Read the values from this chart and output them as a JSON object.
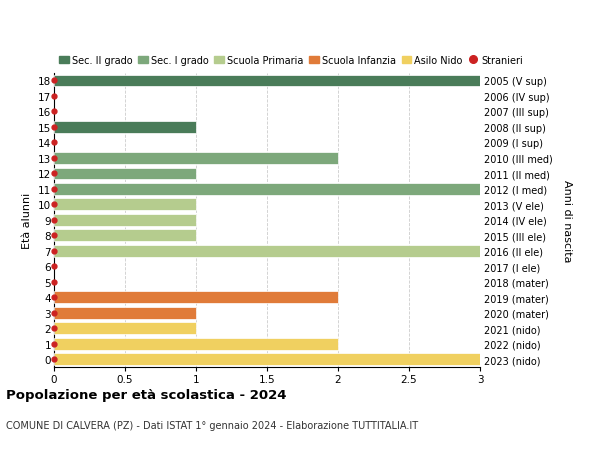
{
  "ages": [
    18,
    17,
    16,
    15,
    14,
    13,
    12,
    11,
    10,
    9,
    8,
    7,
    6,
    5,
    4,
    3,
    2,
    1,
    0
  ],
  "right_labels": [
    "2005 (V sup)",
    "2006 (IV sup)",
    "2007 (III sup)",
    "2008 (II sup)",
    "2009 (I sup)",
    "2010 (III med)",
    "2011 (II med)",
    "2012 (I med)",
    "2013 (V ele)",
    "2014 (IV ele)",
    "2015 (III ele)",
    "2016 (II ele)",
    "2017 (I ele)",
    "2018 (mater)",
    "2019 (mater)",
    "2020 (mater)",
    "2021 (nido)",
    "2022 (nido)",
    "2023 (nido)"
  ],
  "bar_values": [
    3.0,
    0,
    0,
    1.0,
    0,
    2.0,
    1.0,
    3.0,
    1.0,
    1.0,
    1.0,
    3.0,
    0,
    0,
    2.0,
    1.0,
    1.0,
    2.0,
    3.0
  ],
  "bar_colors": [
    "#4a7c59",
    "#4a7c59",
    "#4a7c59",
    "#4a7c59",
    "#4a7c59",
    "#7da87b",
    "#7da87b",
    "#7da87b",
    "#b5cc8e",
    "#b5cc8e",
    "#b5cc8e",
    "#b5cc8e",
    "#b5cc8e",
    "#e07b39",
    "#e07b39",
    "#e07b39",
    "#f0d060",
    "#f0d060",
    "#f0d060"
  ],
  "stranieri_dots": [
    18,
    17,
    16,
    15,
    14,
    13,
    12,
    11,
    10,
    9,
    8,
    7,
    6,
    5,
    4,
    3,
    2,
    1,
    0
  ],
  "legend_items": [
    {
      "label": "Sec. II grado",
      "color": "#4a7c59"
    },
    {
      "label": "Sec. I grado",
      "color": "#7da87b"
    },
    {
      "label": "Scuola Primaria",
      "color": "#b5cc8e"
    },
    {
      "label": "Scuola Infanzia",
      "color": "#e07b39"
    },
    {
      "label": "Asilo Nido",
      "color": "#f0d060"
    },
    {
      "label": "Stranieri",
      "color": "#cc2222"
    }
  ],
  "title": "Popolazione per età scolastica - 2024",
  "subtitle": "COMUNE DI CALVERA (PZ) - Dati ISTAT 1° gennaio 2024 - Elaborazione TUTTITALIA.IT",
  "ylabel_left": "Età alunni",
  "ylabel_right": "Anni di nascita",
  "xlim": [
    0,
    3.0
  ],
  "xticks": [
    0,
    0.5,
    1.0,
    1.5,
    2.0,
    2.5,
    3.0
  ],
  "background_color": "#ffffff",
  "grid_color": "#cccccc",
  "bar_height": 0.75,
  "fig_width": 6.0,
  "fig_height": 4.6,
  "dpi": 100
}
